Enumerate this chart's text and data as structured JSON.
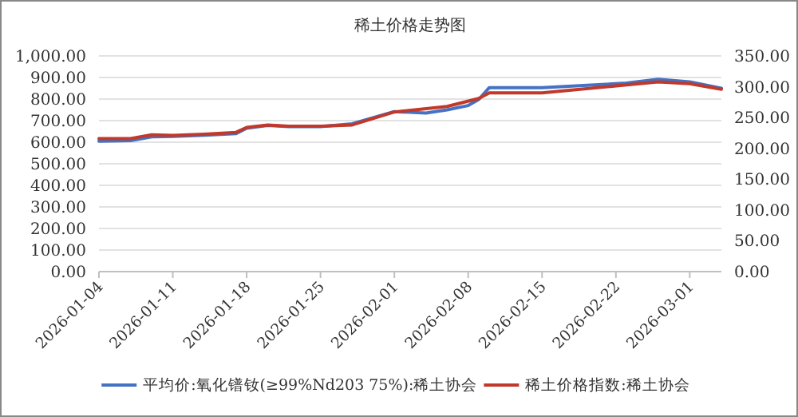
{
  "chart_data": {
    "type": "line",
    "title": "稀土价格走势图",
    "xlim": [
      "2026-01-04",
      "2026-03-04"
    ],
    "xticks": [
      "2026-01-04",
      "2026-01-11",
      "2026-01-18",
      "2026-01-25",
      "2026-02-01",
      "2026-02-08",
      "2026-02-15",
      "2026-02-22",
      "2026-03-01"
    ],
    "ylim": [
      0,
      1000
    ],
    "yticks": [
      {
        "value": 0,
        "label": "0.00"
      },
      {
        "value": 100,
        "label": "100.00"
      },
      {
        "value": 200,
        "label": "200.00"
      },
      {
        "value": 300,
        "label": "300.00"
      },
      {
        "value": 400,
        "label": "400.00"
      },
      {
        "value": 500,
        "label": "500.00"
      },
      {
        "value": 600,
        "label": "600.00"
      },
      {
        "value": 700,
        "label": "700.00"
      },
      {
        "value": 800,
        "label": "800.00"
      },
      {
        "value": 900,
        "label": "900.00"
      },
      {
        "value": 1000,
        "label": "1,000.00"
      }
    ],
    "y2lim": [
      0,
      350
    ],
    "y2ticks": [
      {
        "value": 0,
        "label": "0.00"
      },
      {
        "value": 50,
        "label": "50.00"
      },
      {
        "value": 100,
        "label": "100.00"
      },
      {
        "value": 150,
        "label": "150.00"
      },
      {
        "value": 200,
        "label": "200.00"
      },
      {
        "value": 250,
        "label": "250.00"
      },
      {
        "value": 300,
        "label": "300.00"
      },
      {
        "value": 350,
        "label": "350.00"
      }
    ],
    "grid": "y",
    "legend": "bottom",
    "marker": "none",
    "line_style": "solid",
    "series": [
      {
        "name": "平均价:氧化镨钕(≥99%Nd203 75%):稀土协会",
        "color": "#4472c4",
        "x": [
          "2026-01-04",
          "2026-01-07",
          "2026-01-09",
          "2026-01-11",
          "2026-01-14",
          "2026-01-17",
          "2026-01-18",
          "2026-01-20",
          "2026-01-22",
          "2026-01-25",
          "2026-01-28",
          "2026-02-01",
          "2026-02-04",
          "2026-02-06",
          "2026-02-08",
          "2026-02-09",
          "2026-02-10",
          "2026-02-15",
          "2026-02-23",
          "2026-02-26",
          "2026-03-01",
          "2026-03-04"
        ],
        "values": [
          605,
          607,
          625,
          627,
          632,
          640,
          665,
          678,
          672,
          672,
          685,
          742,
          735,
          750,
          770,
          798,
          853,
          853,
          874,
          892,
          880,
          850
        ]
      },
      {
        "name": "稀土价格指数:稀土协会",
        "color": "#c0392b",
        "axis": "y2",
        "x": [
          "2026-01-04",
          "2026-01-07",
          "2026-01-09",
          "2026-01-11",
          "2026-01-14",
          "2026-01-17",
          "2026-01-18",
          "2026-01-20",
          "2026-01-22",
          "2026-01-25",
          "2026-01-28",
          "2026-02-01",
          "2026-02-06",
          "2026-02-09",
          "2026-02-10",
          "2026-02-15",
          "2026-02-26",
          "2026-03-01",
          "2026-03-04"
        ],
        "values": [
          216,
          216,
          222,
          221,
          223,
          226,
          234,
          238,
          236,
          236,
          238,
          259,
          268,
          281,
          290,
          290,
          308,
          305,
          296
        ]
      }
    ]
  }
}
